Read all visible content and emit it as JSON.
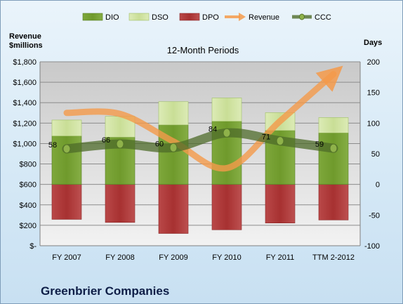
{
  "chart_data": {
    "type": "bar",
    "title": "12-Month Periods",
    "company": "Greenbrier Companies",
    "y_left_label": [
      "Revenue",
      "$millions"
    ],
    "y_right_label": "Days",
    "categories": [
      "FY 2007",
      "FY 2008",
      "FY 2009",
      "FY 2010",
      "FY 2011",
      "TTM 2-2012"
    ],
    "y_left": {
      "min": 0,
      "max": 1800,
      "step": 200,
      "ticks": [
        "$-",
        "$200",
        "$400",
        "$600",
        "$800",
        "$1,000",
        "$1,200",
        "$1,400",
        "$1,600",
        "$1,800"
      ]
    },
    "y_right": {
      "min": -100,
      "max": 200,
      "step": 50,
      "ticks": [
        "-100",
        "-50",
        "0",
        "50",
        "100",
        "150",
        "200"
      ]
    },
    "series": [
      {
        "name": "DIO",
        "axis": "right",
        "color": "#77a033",
        "values": [
          79,
          77,
          97,
          103,
          88,
          84
        ]
      },
      {
        "name": "DSO",
        "axis": "right",
        "color": "#d2e4a4",
        "values": [
          26,
          34,
          38,
          38,
          29,
          25
        ]
      },
      {
        "name": "DPO",
        "axis": "right",
        "color": "#b33b3b",
        "values": [
          -57,
          -62,
          -80,
          -74,
          -63,
          -58
        ]
      },
      {
        "name": "Revenue",
        "axis": "left",
        "color": "#f49a4a",
        "values": [
          1300,
          1290,
          1020,
          760,
          1220,
          1680
        ]
      },
      {
        "name": "CCC",
        "axis": "right",
        "color": "#5a7a34",
        "values": [
          58,
          66,
          60,
          84,
          71,
          59
        ]
      }
    ],
    "legend_position": "top"
  }
}
